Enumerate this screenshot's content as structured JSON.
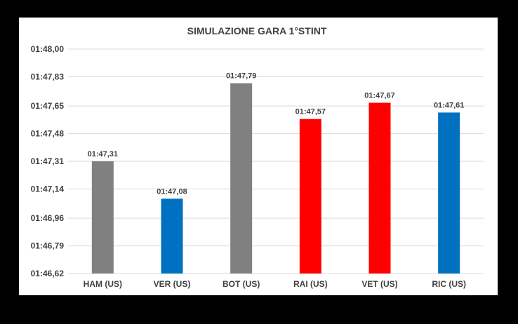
{
  "chart_data": {
    "type": "bar",
    "title": "SIMULAZIONE GARA 1°STINT",
    "xlabel": "",
    "ylabel": "",
    "categories": [
      "HAM (US)",
      "VER (US)",
      "BOT (US)",
      "RAI (US)",
      "VET (US)",
      "RIC (US)"
    ],
    "values_seconds": [
      107.31,
      107.08,
      107.79,
      107.57,
      107.67,
      107.61
    ],
    "data_labels": [
      "01:47,31",
      "01:47,08",
      "01:47,79",
      "01:47,57",
      "01:47,67",
      "01:47,61"
    ],
    "bar_colors": [
      "#808080",
      "#0070c0",
      "#808080",
      "#ff0000",
      "#ff0000",
      "#0070c0"
    ],
    "ylim_seconds": [
      106.62,
      108.0
    ],
    "y_ticks_seconds": [
      106.62,
      106.79,
      106.96,
      107.14,
      107.31,
      107.48,
      107.65,
      107.83,
      108.0
    ],
    "y_tick_labels": [
      "01:46,62",
      "01:46,79",
      "01:46,96",
      "01:47,14",
      "01:47,31",
      "01:47,48",
      "01:47,65",
      "01:47,83",
      "01:48,00"
    ],
    "grid": true,
    "legend": "none"
  },
  "colors": {
    "background": "#000000",
    "plot_area": "#ffffff",
    "gridline": "#d9d9d9",
    "text": "#404040"
  }
}
